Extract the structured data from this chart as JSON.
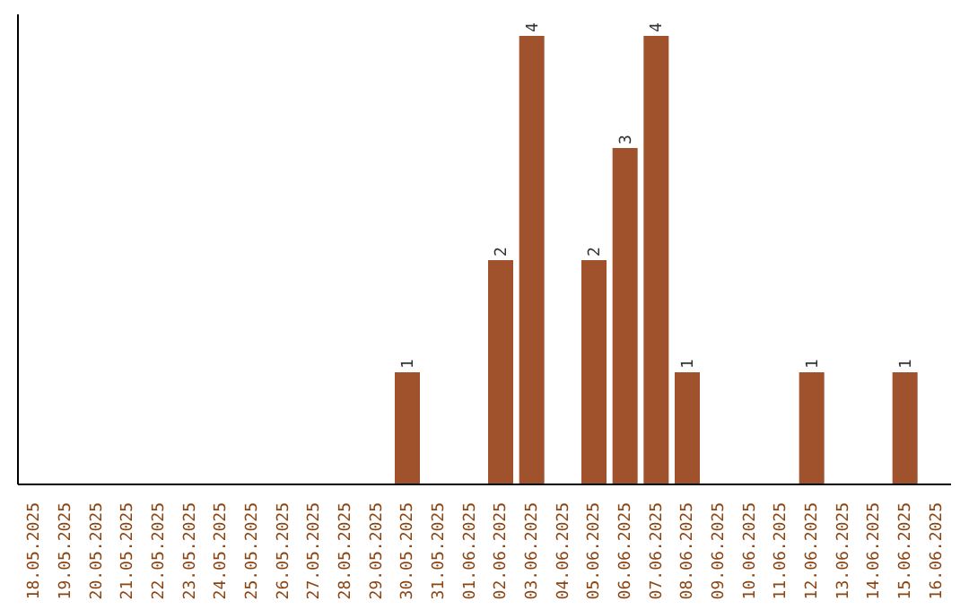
{
  "chart_data": {
    "type": "bar",
    "categories": [
      "18.05.2025",
      "19.05.2025",
      "20.05.2025",
      "21.05.2025",
      "22.05.2025",
      "23.05.2025",
      "24.05.2025",
      "25.05.2025",
      "26.05.2025",
      "27.05.2025",
      "28.05.2025",
      "29.05.2025",
      "30.05.2025",
      "31.05.2025",
      "01.06.2025",
      "02.06.2025",
      "03.06.2025",
      "04.06.2025",
      "05.06.2025",
      "06.06.2025",
      "07.06.2025",
      "08.06.2025",
      "09.06.2025",
      "10.06.2025",
      "11.06.2025",
      "12.06.2025",
      "13.06.2025",
      "14.06.2025",
      "15.06.2025",
      "16.06.2025"
    ],
    "values": [
      null,
      null,
      null,
      null,
      null,
      null,
      null,
      null,
      null,
      null,
      null,
      null,
      1,
      null,
      null,
      2,
      4,
      null,
      2,
      3,
      4,
      1,
      null,
      null,
      null,
      1,
      null,
      null,
      1,
      null
    ],
    "value_labels": [
      null,
      null,
      null,
      null,
      null,
      null,
      null,
      null,
      null,
      null,
      null,
      null,
      "1",
      null,
      null,
      "2",
      "4",
      null,
      "2",
      "3",
      "4",
      "1",
      null,
      null,
      null,
      "1",
      null,
      null,
      "1",
      null
    ],
    "color": "#a0522d"
  }
}
